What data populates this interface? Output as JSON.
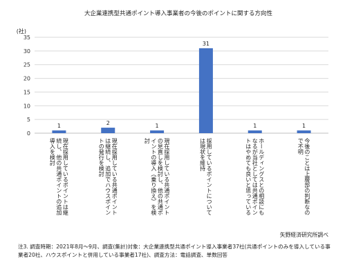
{
  "chart_data": {
    "type": "bar",
    "title": "大企業連携型共通ポイント導入事業者の今後のポイントに関する方向性",
    "ylabel": "(社)",
    "ylim": [
      0,
      35
    ],
    "yticks": [
      0,
      5,
      10,
      15,
      20,
      25,
      30,
      35
    ],
    "grid": true,
    "bar_color": "#4472C4",
    "categories": [
      "現在採用しているポイントは継続し、他の共通ポイントの追加導入を検討",
      "現在採用している共通ポイントは継続し、追加でハウスポイントの発行を検討",
      "現在採用している共通ポイントの見直しを検討し、他の共通ポイントの導入（乗り換え）を検討",
      "採用しているポイントについては現状を維持",
      "ホールディングスとの相談にもなるが当社としては共通ポイントはやめても良いと思っている",
      "今後のことは上層部の判断なので不明"
    ],
    "category_lines": [
      [
        "現在採用しているポイントは継",
        "続し、他の共通ポイントの追加",
        "導入を検討"
      ],
      [
        "現在採用している共通ポイント",
        "は継続し、追加でハウスポイン",
        "トの発行を検討"
      ],
      [
        "現在採用している共通ポイント",
        "の見直しを検討し、他の共通ポ",
        "イントの導入（乗り換え）を検",
        "討"
      ],
      [
        "採用しているポイントについて",
        "は現状を維持"
      ],
      [
        "ホールディングスとの相談にも",
        "なるが当社としては共通ポイン",
        "トはやめても良いと思っている"
      ],
      [
        "今後のことは上層部の判断なの",
        "で不明"
      ]
    ],
    "values": [
      1,
      2,
      1,
      31,
      1,
      1
    ]
  },
  "source": "矢野経済研究所調べ",
  "notes": [
    "注3. 調査時期：2021年8月～9月、調査(集計)対象：大企業連携型共通ポイント導入事業者37社(共通ポイントのみを導入している事",
    "業者20社、ハウスポイントと併用している事業者17社)、調査方法：電話調査、単数回答"
  ]
}
